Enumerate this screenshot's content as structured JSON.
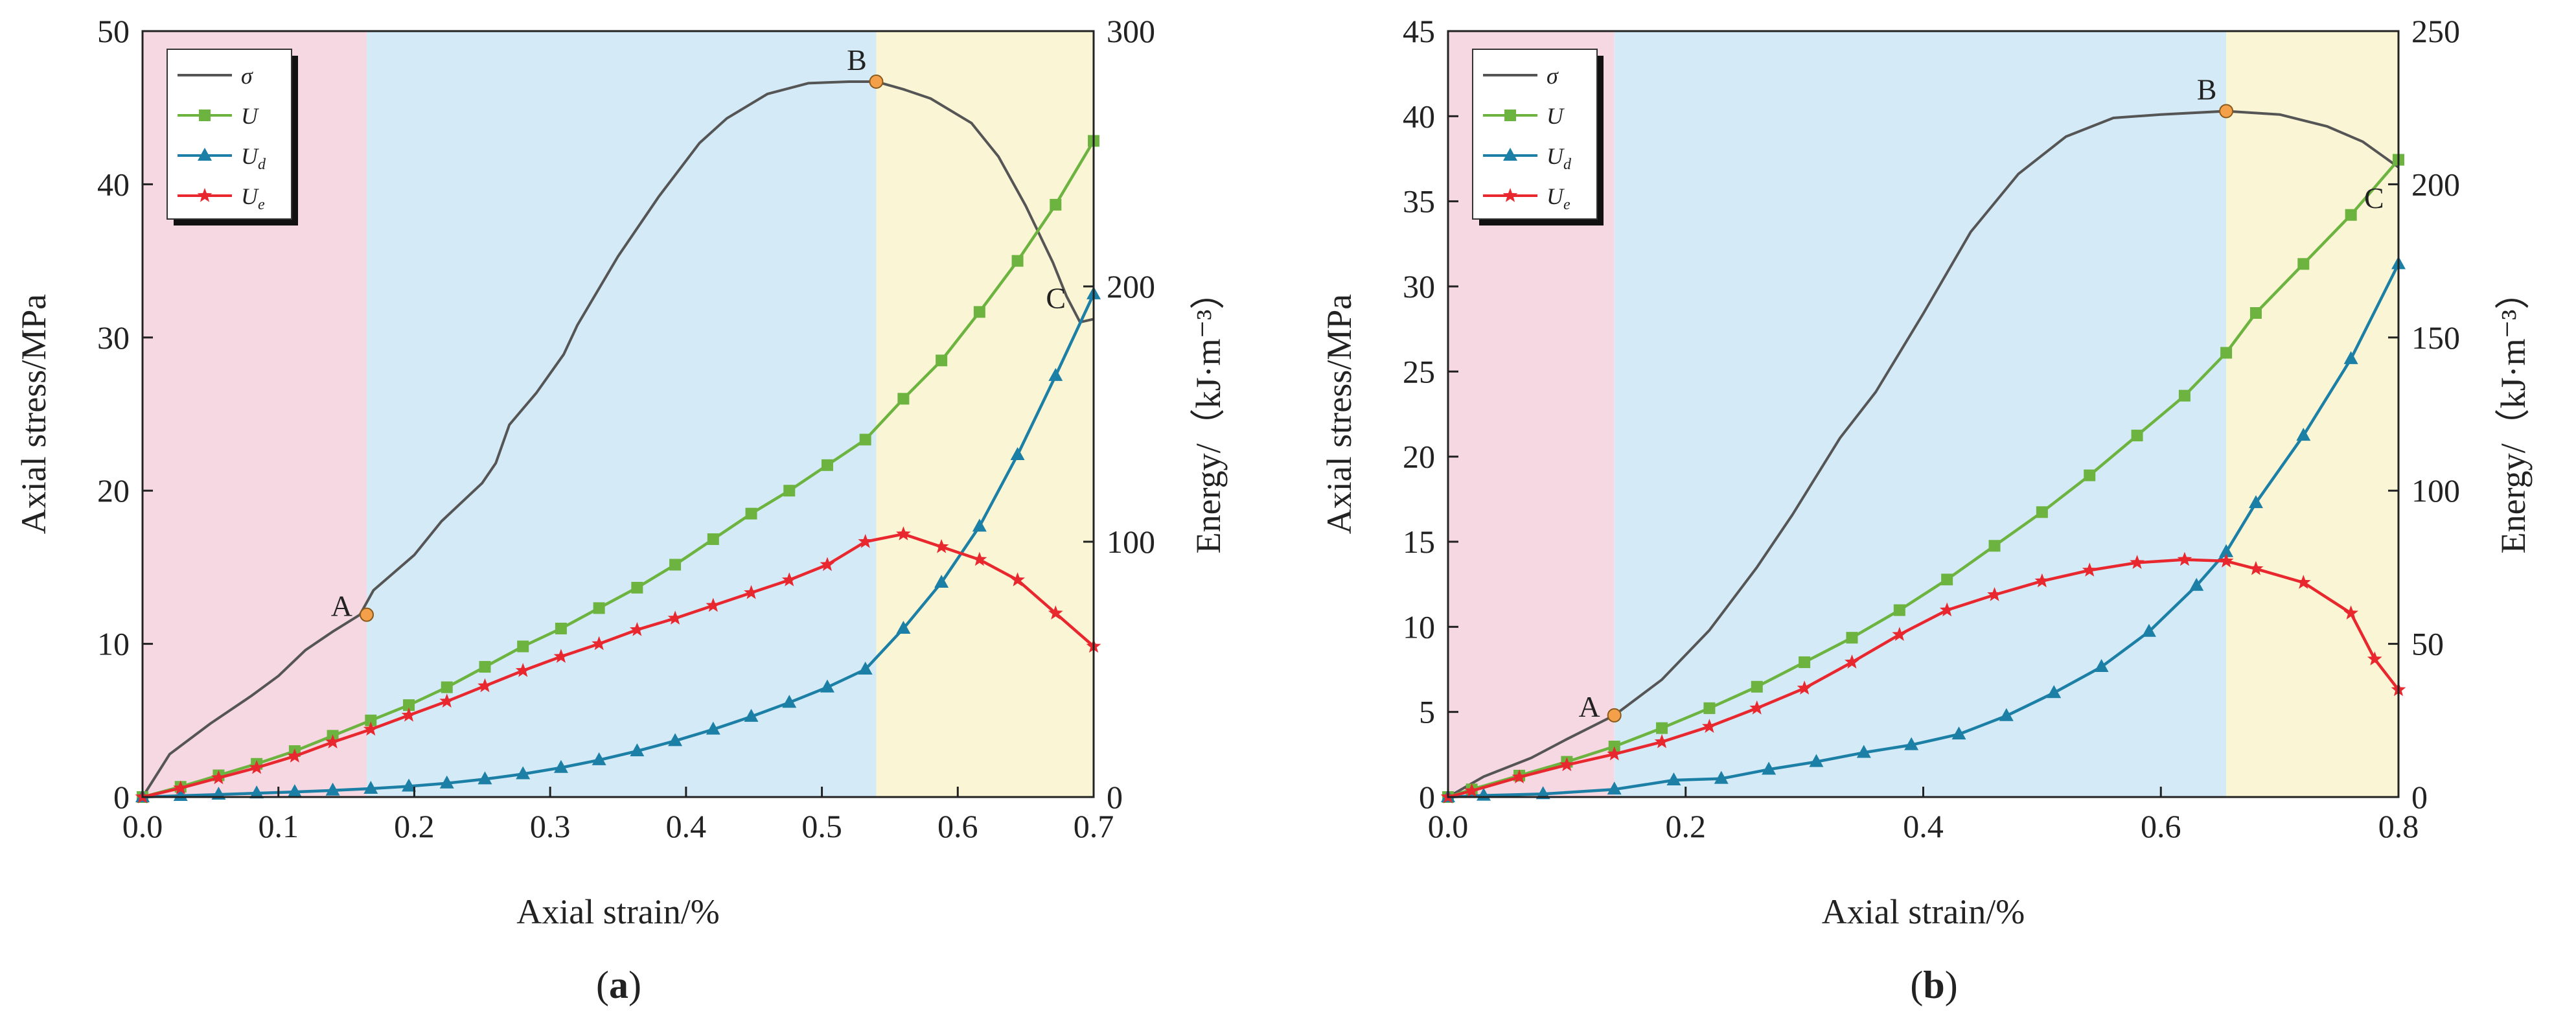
{
  "figure": {
    "colors": {
      "stage1": "#f6d8e2",
      "stage2": "#d4ebf7",
      "stage3": "#faf5d4",
      "sigma": "#555555",
      "U": "#6db33f",
      "Ud": "#1c7fa6",
      "Ue": "#e8272e",
      "marker": "#f4a04a"
    }
  },
  "chart_data": [
    {
      "type": "line",
      "panel": "a",
      "caption_open": "(",
      "caption_letter": "a",
      "caption_close": ")",
      "xlabel": "Axial strain/%",
      "ylabel_left": "Axial stress/MPa",
      "ylabel_right": "Energy/（kJ·m⁻³）",
      "xlim": [
        0,
        0.7
      ],
      "ylim_left": [
        0,
        50
      ],
      "ylim_right": [
        0,
        300
      ],
      "x_ticks": [
        "0.0",
        "0.1",
        "0.2",
        "0.3",
        "0.4",
        "0.5",
        "0.6",
        "0.7"
      ],
      "x_tick_values": [
        0,
        0.1,
        0.2,
        0.3,
        0.4,
        0.5,
        0.6,
        0.7
      ],
      "y_left_ticks": [
        "0",
        "10",
        "20",
        "30",
        "40",
        "50"
      ],
      "y_left_tick_values": [
        0,
        10,
        20,
        30,
        40,
        50
      ],
      "y_right_ticks": [
        "0",
        "100",
        "200",
        "300"
      ],
      "y_right_tick_values": [
        0,
        100,
        200,
        300
      ],
      "stage_bounds": [
        0,
        0.165,
        0.54,
        0.7
      ],
      "legend": [
        "σ",
        "U",
        "Ud",
        "Ue"
      ],
      "points": [
        {
          "label": "A",
          "x": 0.165,
          "y": 11.9,
          "axis": "left",
          "marker": true,
          "label_pos": "left"
        },
        {
          "label": "B",
          "x": 0.54,
          "y": 46.7,
          "axis": "left",
          "marker": true,
          "label_pos": "above"
        },
        {
          "label": "C",
          "x": 0.69,
          "y": 32.0,
          "axis": "left",
          "marker": false,
          "label_pos": "left"
        }
      ],
      "series": [
        {
          "name": "σ",
          "axis": "left",
          "color_key": "sigma",
          "marker": "none",
          "x": [
            0,
            0.02,
            0.05,
            0.08,
            0.1,
            0.12,
            0.14,
            0.16,
            0.17,
            0.2,
            0.22,
            0.25,
            0.26,
            0.27,
            0.29,
            0.31,
            0.32,
            0.35,
            0.38,
            0.41,
            0.43,
            0.46,
            0.49,
            0.52,
            0.54,
            0.56,
            0.58,
            0.61,
            0.63,
            0.65,
            0.67,
            0.68,
            0.69,
            0.7
          ],
          "y": [
            0,
            2.8,
            4.8,
            6.6,
            7.9,
            9.6,
            10.8,
            11.9,
            13.5,
            15.8,
            18.0,
            20.5,
            21.8,
            24.3,
            26.4,
            28.9,
            30.8,
            35.3,
            39.2,
            42.7,
            44.3,
            45.9,
            46.6,
            46.7,
            46.7,
            46.2,
            45.6,
            44.0,
            41.8,
            38.6,
            34.9,
            32.7,
            31.0,
            31.2
          ]
        },
        {
          "name": "U",
          "axis": "right",
          "color_key": "U",
          "marker": "square",
          "x": [
            0,
            0.028,
            0.056,
            0.084,
            0.112,
            0.14,
            0.168,
            0.196,
            0.224,
            0.252,
            0.28,
            0.308,
            0.336,
            0.364,
            0.392,
            0.42,
            0.448,
            0.476,
            0.504,
            0.532,
            0.56,
            0.588,
            0.616,
            0.644,
            0.672,
            0.7
          ],
          "y": [
            0,
            4.0,
            8.5,
            13.0,
            18.0,
            24.0,
            30.0,
            36.0,
            43.0,
            51.0,
            59.0,
            66.0,
            74.0,
            82.0,
            91.0,
            101.0,
            111.0,
            120.0,
            130.0,
            140.0,
            156.0,
            171.0,
            190.0,
            210.0,
            232.0,
            257.0
          ]
        },
        {
          "name": "Ud",
          "axis": "right",
          "color_key": "Ud",
          "marker": "triangle",
          "x": [
            0,
            0.028,
            0.056,
            0.084,
            0.112,
            0.14,
            0.168,
            0.196,
            0.224,
            0.252,
            0.28,
            0.308,
            0.336,
            0.364,
            0.392,
            0.42,
            0.448,
            0.476,
            0.504,
            0.532,
            0.56,
            0.588,
            0.616,
            0.644,
            0.672,
            0.7
          ],
          "y": [
            0,
            0.5,
            1.0,
            1.5,
            2.0,
            2.6,
            3.3,
            4.2,
            5.4,
            7.0,
            9.0,
            11.5,
            14.5,
            18.0,
            22.0,
            26.5,
            31.5,
            37.0,
            43.0,
            50.0,
            66.0,
            84.0,
            106.0,
            134.0,
            165.0,
            197.0
          ]
        },
        {
          "name": "Ue",
          "axis": "right",
          "color_key": "Ue",
          "marker": "star",
          "x": [
            0,
            0.028,
            0.056,
            0.084,
            0.112,
            0.14,
            0.168,
            0.196,
            0.224,
            0.252,
            0.28,
            0.308,
            0.336,
            0.364,
            0.392,
            0.42,
            0.448,
            0.476,
            0.504,
            0.532,
            0.56,
            0.588,
            0.616,
            0.644,
            0.672,
            0.7
          ],
          "y": [
            0,
            3.5,
            7.5,
            11.5,
            16.0,
            21.5,
            26.5,
            32.0,
            37.5,
            43.5,
            49.5,
            55.0,
            60.0,
            65.5,
            70.0,
            75.0,
            80.0,
            85.0,
            91.0,
            100.0,
            103.0,
            98.0,
            93.0,
            85.0,
            72.0,
            59.0
          ]
        }
      ]
    },
    {
      "type": "line",
      "panel": "b",
      "caption_open": "(",
      "caption_letter": "b",
      "caption_close": ")",
      "xlabel": "Axial strain/%",
      "ylabel_left": "Axial stress/MPa",
      "ylabel_right": "Energy/（kJ·m⁻³）",
      "xlim": [
        0,
        0.8
      ],
      "ylim_left": [
        0,
        45
      ],
      "ylim_right": [
        0,
        250
      ],
      "x_ticks": [
        "0.0",
        "0.2",
        "0.4",
        "0.6",
        "0.8"
      ],
      "x_tick_values": [
        0,
        0.2,
        0.4,
        0.6,
        0.8
      ],
      "y_left_ticks": [
        "0",
        "5",
        "10",
        "15",
        "20",
        "25",
        "30",
        "35",
        "40",
        "45"
      ],
      "y_left_tick_values": [
        0,
        5,
        10,
        15,
        20,
        25,
        30,
        35,
        40,
        45
      ],
      "y_right_ticks": [
        "0",
        "50",
        "100",
        "150",
        "200",
        "250"
      ],
      "y_right_tick_values": [
        0,
        50,
        100,
        150,
        200,
        250
      ],
      "stage_bounds": [
        0,
        0.14,
        0.655,
        0.8
      ],
      "legend": [
        "σ",
        "U",
        "Ud",
        "Ue"
      ],
      "points": [
        {
          "label": "A",
          "x": 0.14,
          "y": 4.8,
          "axis": "left",
          "marker": true,
          "label_pos": "left"
        },
        {
          "label": "B",
          "x": 0.655,
          "y": 40.3,
          "axis": "left",
          "marker": true,
          "label_pos": "above"
        },
        {
          "label": "C",
          "x": 0.79,
          "y": 36.9,
          "axis": "left",
          "marker": false,
          "label_pos": "below-left"
        }
      ],
      "series": [
        {
          "name": "σ",
          "axis": "left",
          "color_key": "sigma",
          "marker": "none",
          "x": [
            0,
            0.03,
            0.07,
            0.1,
            0.14,
            0.18,
            0.22,
            0.26,
            0.29,
            0.33,
            0.36,
            0.4,
            0.44,
            0.48,
            0.52,
            0.56,
            0.6,
            0.655,
            0.7,
            0.74,
            0.77,
            0.8
          ],
          "y": [
            0,
            1.2,
            2.3,
            3.4,
            4.8,
            6.9,
            9.8,
            13.5,
            16.6,
            21.1,
            23.8,
            28.4,
            33.2,
            36.6,
            38.8,
            39.9,
            40.1,
            40.3,
            40.1,
            39.4,
            38.5,
            37.0
          ]
        },
        {
          "name": "U",
          "axis": "right",
          "color_key": "U",
          "marker": "square",
          "x": [
            0,
            0.02,
            0.06,
            0.1,
            0.14,
            0.18,
            0.22,
            0.26,
            0.3,
            0.34,
            0.38,
            0.42,
            0.46,
            0.5,
            0.54,
            0.58,
            0.62,
            0.655,
            0.68,
            0.72,
            0.76,
            0.8
          ],
          "y": [
            0,
            2.5,
            7.0,
            11.5,
            16.5,
            22.5,
            29.0,
            36.0,
            44.0,
            52.0,
            61.0,
            71.0,
            82.0,
            93.0,
            105.0,
            118.0,
            131.0,
            145.0,
            158.0,
            174.0,
            190.0,
            208.0
          ]
        },
        {
          "name": "Ud",
          "axis": "right",
          "color_key": "Ud",
          "marker": "triangle",
          "x": [
            0,
            0.03,
            0.08,
            0.14,
            0.19,
            0.23,
            0.27,
            0.31,
            0.35,
            0.39,
            0.43,
            0.47,
            0.51,
            0.55,
            0.59,
            0.63,
            0.655,
            0.68,
            0.72,
            0.76,
            0.8
          ],
          "y": [
            0,
            0.5,
            1.0,
            2.5,
            5.5,
            6.0,
            9.0,
            11.5,
            14.5,
            17.0,
            20.5,
            26.5,
            34.0,
            42.5,
            54.0,
            69.0,
            80.0,
            96.0,
            118.0,
            143.0,
            174.0
          ]
        },
        {
          "name": "Ue",
          "axis": "right",
          "color_key": "Ue",
          "marker": "star",
          "x": [
            0,
            0.02,
            0.06,
            0.1,
            0.14,
            0.18,
            0.22,
            0.26,
            0.3,
            0.34,
            0.38,
            0.42,
            0.46,
            0.5,
            0.54,
            0.58,
            0.62,
            0.655,
            0.68,
            0.72,
            0.76,
            0.78,
            0.8
          ],
          "y": [
            0,
            2.0,
            6.5,
            10.5,
            14.0,
            18.0,
            23.0,
            29.0,
            35.5,
            44.0,
            53.0,
            61.0,
            66.0,
            70.5,
            74.0,
            76.5,
            77.5,
            77.0,
            74.5,
            70.0,
            60.0,
            45.0,
            35.0
          ]
        }
      ]
    }
  ]
}
